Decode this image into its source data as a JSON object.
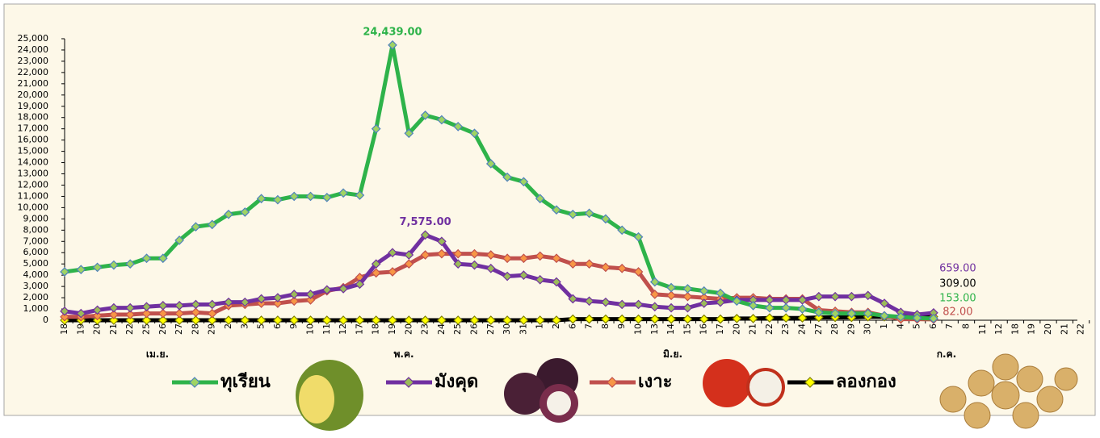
{
  "chart_data": {
    "type": "line",
    "categories": [
      "18",
      "19",
      "20",
      "21",
      "22",
      "25",
      "26",
      "27",
      "28",
      "29",
      "2",
      "3",
      "5",
      "6",
      "9",
      "10",
      "11",
      "12",
      "17",
      "18",
      "19",
      "20",
      "23",
      "24",
      "25",
      "26",
      "27",
      "30",
      "31",
      "1",
      "2",
      "6",
      "7",
      "8",
      "9",
      "10",
      "13",
      "14",
      "15",
      "16",
      "17",
      "20",
      "21",
      "22",
      "23",
      "24",
      "27",
      "28",
      "29",
      "30",
      "1",
      "4",
      "5",
      "6",
      "7",
      "8",
      "11",
      "12",
      "18",
      "19",
      "20",
      "21",
      "22"
    ],
    "month_labels": [
      "เม.ย.",
      "พ.ค.",
      "มิ.ย.",
      "ก.ค."
    ],
    "ylim": [
      0,
      25000
    ],
    "yticks": [
      0,
      {
        "value": 1000,
        "label": "1,000"
      },
      {
        "value": 2000,
        "label": "2,000"
      },
      {
        "value": 3000,
        "label": "3,000"
      },
      {
        "value": 4000,
        "label": "4,000"
      },
      {
        "value": 5000,
        "label": "5,000"
      },
      {
        "value": 6000,
        "label": "6,000"
      },
      {
        "value": 7000,
        "label": "7,000"
      },
      {
        "value": 8000,
        "label": "8,000"
      },
      {
        "value": 9000,
        "label": "9,000"
      },
      {
        "value": 10000,
        "label": "10,000"
      },
      {
        "value": 11000,
        "label": "11,000"
      },
      {
        "value": 12000,
        "label": "12,000"
      },
      {
        "value": 13000,
        "label": "13,000"
      },
      {
        "value": 14000,
        "label": "14,000"
      },
      {
        "value": 15000,
        "label": "15,000"
      },
      {
        "value": 16000,
        "label": "16,000"
      },
      {
        "value": 17000,
        "label": "17,000"
      },
      {
        "value": 18000,
        "label": "18,000"
      },
      {
        "value": 19000,
        "label": "19,000"
      },
      {
        "value": 20000,
        "label": "20,000"
      },
      {
        "value": 21000,
        "label": "21,000"
      },
      {
        "value": 22000,
        "label": "22,000"
      },
      {
        "value": 23000,
        "label": "23,000"
      },
      {
        "value": 24000,
        "label": "24,000"
      },
      {
        "value": 25000,
        "label": "25,000"
      }
    ],
    "grid": false,
    "legend": "bottom",
    "series": [
      {
        "name": "ทุเรียน",
        "color": "#2eb34a",
        "marker_color": "#9fd463",
        "marker_stroke": "#4f81bd",
        "values": [
          4300,
          4500,
          4700,
          4900,
          5000,
          5500,
          5500,
          7100,
          8300,
          8500,
          9400,
          9600,
          10800,
          10700,
          11000,
          11000,
          10900,
          11300,
          11100,
          17000,
          24439,
          16600,
          18200,
          17800,
          17200,
          16600,
          13900,
          12700,
          12300,
          10800,
          9800,
          9400,
          9500,
          9000,
          8000,
          7400,
          3400,
          2900,
          2800,
          2600,
          2400,
          1700,
          1300,
          1100,
          1100,
          1000,
          700,
          600,
          600,
          600,
          400,
          300,
          200,
          153,
          null,
          null,
          null,
          null,
          null,
          null,
          null,
          null,
          null
        ],
        "value_labels": [
          null,
          null,
          null,
          null,
          null,
          null,
          null,
          null,
          null,
          null,
          null,
          null,
          null,
          null,
          null,
          null,
          null,
          null,
          null,
          null,
          "24,439.00",
          null,
          null,
          null,
          null,
          null,
          null,
          null,
          null,
          null,
          null,
          null,
          null,
          null,
          null,
          null,
          null,
          null,
          null,
          null,
          null,
          null,
          null,
          null,
          null,
          null,
          null,
          null,
          null,
          null,
          null,
          null,
          null,
          "153.00",
          null,
          null,
          null,
          null,
          null,
          null,
          null,
          null,
          null
        ]
      },
      {
        "name": "มังคุด",
        "color": "#7030a0",
        "marker_color": "#9bbb59",
        "marker_stroke": "#7030a0",
        "values": [
          800,
          600,
          900,
          1100,
          1100,
          1200,
          1300,
          1300,
          1400,
          1400,
          1600,
          1600,
          1900,
          2000,
          2300,
          2300,
          2700,
          2800,
          3200,
          5000,
          6000,
          5800,
          7575,
          7000,
          5000,
          4900,
          4600,
          3900,
          4000,
          3600,
          3400,
          1900,
          1700,
          1600,
          1400,
          1400,
          1200,
          1100,
          1100,
          1500,
          1600,
          1800,
          1800,
          1800,
          1800,
          1800,
          2100,
          2100,
          2100,
          2200,
          1500,
          700,
          500,
          659,
          null,
          null,
          null,
          null,
          null,
          null,
          null,
          null,
          null
        ],
        "value_labels": [
          null,
          null,
          null,
          null,
          null,
          null,
          null,
          null,
          null,
          null,
          null,
          null,
          null,
          null,
          null,
          null,
          null,
          null,
          null,
          null,
          null,
          null,
          "7,575.00",
          null,
          null,
          null,
          null,
          null,
          null,
          null,
          null,
          null,
          null,
          null,
          null,
          null,
          null,
          null,
          null,
          null,
          null,
          null,
          null,
          null,
          null,
          null,
          null,
          null,
          null,
          null,
          null,
          null,
          null,
          "659.00",
          null,
          null,
          null,
          null,
          null,
          null,
          null,
          null,
          null
        ]
      },
      {
        "name": "เงาะ",
        "color": "#c0504d",
        "marker_color": "#f79646",
        "marker_stroke": "#c0504d",
        "values": [
          300,
          300,
          400,
          500,
          500,
          600,
          600,
          600,
          700,
          600,
          1300,
          1400,
          1500,
          1500,
          1700,
          1800,
          2600,
          2900,
          3800,
          4200,
          4300,
          5000,
          5800,
          5900,
          5900,
          5900,
          5800,
          5500,
          5500,
          5700,
          5500,
          5000,
          5000,
          4700,
          4600,
          4300,
          2300,
          2200,
          2100,
          2000,
          1900,
          2000,
          2000,
          1900,
          1900,
          1900,
          900,
          800,
          700,
          700,
          400,
          100,
          100,
          82,
          null,
          null,
          null,
          null,
          null,
          null,
          null,
          null,
          null
        ],
        "value_labels": [
          null,
          null,
          null,
          null,
          null,
          null,
          null,
          null,
          null,
          null,
          null,
          null,
          null,
          null,
          null,
          null,
          null,
          null,
          null,
          null,
          null,
          null,
          null,
          null,
          null,
          null,
          null,
          null,
          null,
          null,
          null,
          null,
          null,
          null,
          null,
          null,
          null,
          null,
          null,
          null,
          null,
          null,
          null,
          null,
          null,
          null,
          null,
          null,
          null,
          null,
          null,
          null,
          null,
          "82.00",
          null,
          null,
          null,
          null,
          null,
          null,
          null,
          null,
          null
        ]
      },
      {
        "name": "ลองกอง",
        "color": "#000000",
        "marker_color": "#ffff00",
        "marker_stroke": "#7f7f00",
        "values": [
          0,
          0,
          0,
          0,
          0,
          0,
          0,
          0,
          0,
          0,
          0,
          0,
          0,
          0,
          0,
          0,
          0,
          0,
          0,
          0,
          0,
          0,
          0,
          0,
          0,
          0,
          0,
          0,
          0,
          0,
          0,
          100,
          100,
          100,
          100,
          100,
          100,
          100,
          100,
          100,
          100,
          150,
          150,
          200,
          200,
          200,
          250,
          250,
          250,
          300,
          300,
          300,
          300,
          309,
          null,
          null,
          null,
          null,
          null,
          null,
          null,
          null,
          null
        ],
        "value_labels": [
          null,
          null,
          null,
          null,
          null,
          null,
          null,
          null,
          null,
          null,
          null,
          null,
          null,
          null,
          null,
          null,
          null,
          null,
          null,
          null,
          null,
          null,
          null,
          null,
          null,
          null,
          null,
          null,
          null,
          null,
          null,
          null,
          null,
          null,
          null,
          null,
          null,
          null,
          null,
          null,
          null,
          null,
          null,
          null,
          null,
          null,
          null,
          null,
          null,
          null,
          null,
          null,
          null,
          "309.00",
          null,
          null,
          null,
          null,
          null,
          null,
          null,
          null,
          null
        ]
      }
    ]
  }
}
